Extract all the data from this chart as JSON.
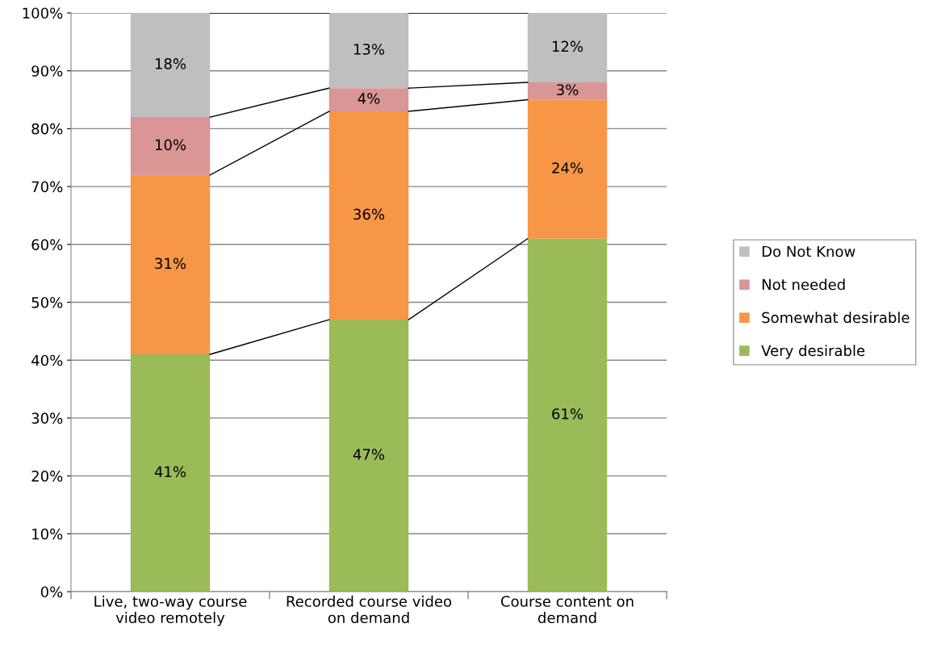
{
  "chart_data": {
    "type": "bar",
    "stacked": true,
    "categories": [
      "Live, two-way course\nvideo remotely",
      "Recorded course video\non demand",
      "Course content on\ndemand"
    ],
    "series": [
      {
        "name": "Very desirable",
        "color": "#9bbb59",
        "values": [
          41,
          47,
          61
        ],
        "value_labels": [
          "41%",
          "47%",
          "61%"
        ]
      },
      {
        "name": "Somewhat desirable",
        "color": "#f79646",
        "values": [
          31,
          36,
          24
        ],
        "value_labels": [
          "31%",
          "36%",
          "24%"
        ]
      },
      {
        "name": "Not needed",
        "color": "#d99694",
        "values": [
          10,
          4,
          3
        ],
        "value_labels": [
          "10%",
          "4%",
          "3%"
        ]
      },
      {
        "name": "Do Not Know",
        "color": "#bfbfbf",
        "values": [
          18,
          13,
          12
        ],
        "value_labels": [
          "18%",
          "13%",
          "12%"
        ]
      }
    ],
    "ylim": [
      0,
      100
    ],
    "yticks": [
      {
        "value": 0,
        "label": "0%"
      },
      {
        "value": 10,
        "label": "10%"
      },
      {
        "value": 20,
        "label": "20%"
      },
      {
        "value": 30,
        "label": "30%"
      },
      {
        "value": 40,
        "label": "40%"
      },
      {
        "value": 50,
        "label": "50%"
      },
      {
        "value": 60,
        "label": "60%"
      },
      {
        "value": 70,
        "label": "70%"
      },
      {
        "value": 80,
        "label": "80%"
      },
      {
        "value": 90,
        "label": "90%"
      },
      {
        "value": 100,
        "label": "100%"
      }
    ],
    "grid": "y",
    "legend": "right"
  }
}
